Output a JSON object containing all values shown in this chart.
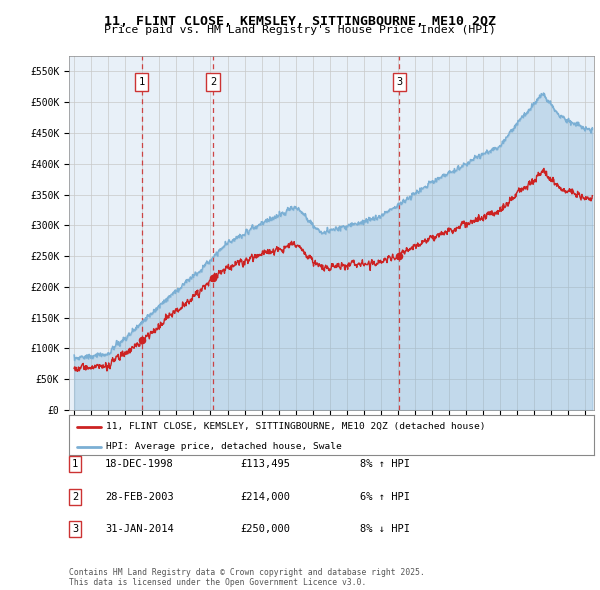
{
  "title": "11, FLINT CLOSE, KEMSLEY, SITTINGBOURNE, ME10 2QZ",
  "subtitle": "Price paid vs. HM Land Registry's House Price Index (HPI)",
  "hpi_color": "#7bafd4",
  "price_color": "#cc2222",
  "dashed_line_color": "#cc3333",
  "background_color": "#e8f0f8",
  "grid_color": "#c8c8c8",
  "xlim_start": 1994.7,
  "xlim_end": 2025.5,
  "ylim_min": 0,
  "ylim_max": 575000,
  "yticks": [
    0,
    50000,
    100000,
    150000,
    200000,
    250000,
    300000,
    350000,
    400000,
    450000,
    500000,
    550000
  ],
  "ytick_labels": [
    "£0",
    "£50K",
    "£100K",
    "£150K",
    "£200K",
    "£250K",
    "£300K",
    "£350K",
    "£400K",
    "£450K",
    "£500K",
    "£550K"
  ],
  "purchases": [
    {
      "year": 1998.96,
      "price": 113495,
      "label": "1"
    },
    {
      "year": 2003.16,
      "price": 214000,
      "label": "2"
    },
    {
      "year": 2014.08,
      "price": 250000,
      "label": "3"
    }
  ],
  "legend_price_label": "11, FLINT CLOSE, KEMSLEY, SITTINGBOURNE, ME10 2QZ (detached house)",
  "legend_hpi_label": "HPI: Average price, detached house, Swale",
  "table_rows": [
    {
      "num": "1",
      "date": "18-DEC-1998",
      "price": "£113,495",
      "change": "8% ↑ HPI"
    },
    {
      "num": "2",
      "date": "28-FEB-2003",
      "price": "£214,000",
      "change": "6% ↑ HPI"
    },
    {
      "num": "3",
      "date": "31-JAN-2014",
      "price": "£250,000",
      "change": "8% ↓ HPI"
    }
  ],
  "footnote": "Contains HM Land Registry data © Crown copyright and database right 2025.\nThis data is licensed under the Open Government Licence v3.0."
}
